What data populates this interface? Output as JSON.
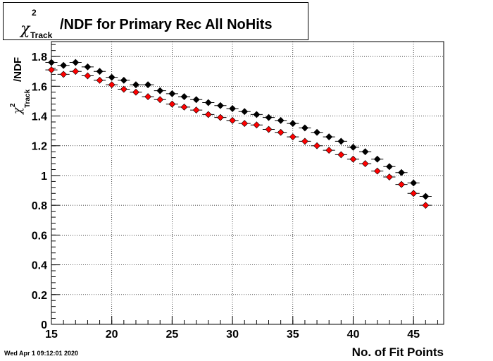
{
  "chart_data": {
    "type": "scatter",
    "title_main": "/NDF for Primary Rec All NoHits",
    "title_chi": "χ",
    "title_sup": "2",
    "title_sub": "Track",
    "xlabel": "No. of Fit Points",
    "ylabel_main": "/NDF",
    "ylabel_chi": "χ",
    "ylabel_sup": "2",
    "ylabel_sub": "Track",
    "xlim": [
      15,
      47.5
    ],
    "ylim": [
      0,
      1.9
    ],
    "xticks": [
      15,
      20,
      25,
      30,
      35,
      40,
      45
    ],
    "yticks": [
      0,
      0.2,
      0.4,
      0.6,
      0.8,
      1,
      1.2,
      1.4,
      1.6,
      1.8
    ],
    "ytick_labels": [
      "0",
      "0.2",
      "0.4",
      "0.6",
      "0.8",
      "1",
      "1.2",
      "1.4",
      "1.6",
      "1.8"
    ],
    "grid": true,
    "x": [
      15,
      16,
      17,
      18,
      19,
      20,
      21,
      22,
      23,
      24,
      25,
      26,
      27,
      28,
      29,
      30,
      31,
      32,
      33,
      34,
      35,
      36,
      37,
      38,
      39,
      40,
      41,
      42,
      43,
      44,
      45,
      46
    ],
    "series": [
      {
        "color": "#000000",
        "values": [
          1.76,
          1.74,
          1.76,
          1.73,
          1.7,
          1.66,
          1.64,
          1.61,
          1.61,
          1.57,
          1.55,
          1.53,
          1.51,
          1.49,
          1.47,
          1.45,
          1.43,
          1.41,
          1.39,
          1.37,
          1.35,
          1.32,
          1.29,
          1.26,
          1.23,
          1.19,
          1.16,
          1.11,
          1.06,
          1.02,
          0.95,
          0.86
        ]
      },
      {
        "color": "#ff0000",
        "values": [
          1.71,
          1.68,
          1.7,
          1.67,
          1.64,
          1.61,
          1.58,
          1.56,
          1.53,
          1.51,
          1.48,
          1.46,
          1.44,
          1.41,
          1.39,
          1.37,
          1.35,
          1.34,
          1.31,
          1.29,
          1.26,
          1.23,
          1.2,
          1.17,
          1.14,
          1.11,
          1.08,
          1.03,
          0.99,
          0.94,
          0.88,
          0.8
        ]
      }
    ]
  },
  "footer": {
    "timestamp": "Wed Apr  1 09:12:01 2020"
  }
}
